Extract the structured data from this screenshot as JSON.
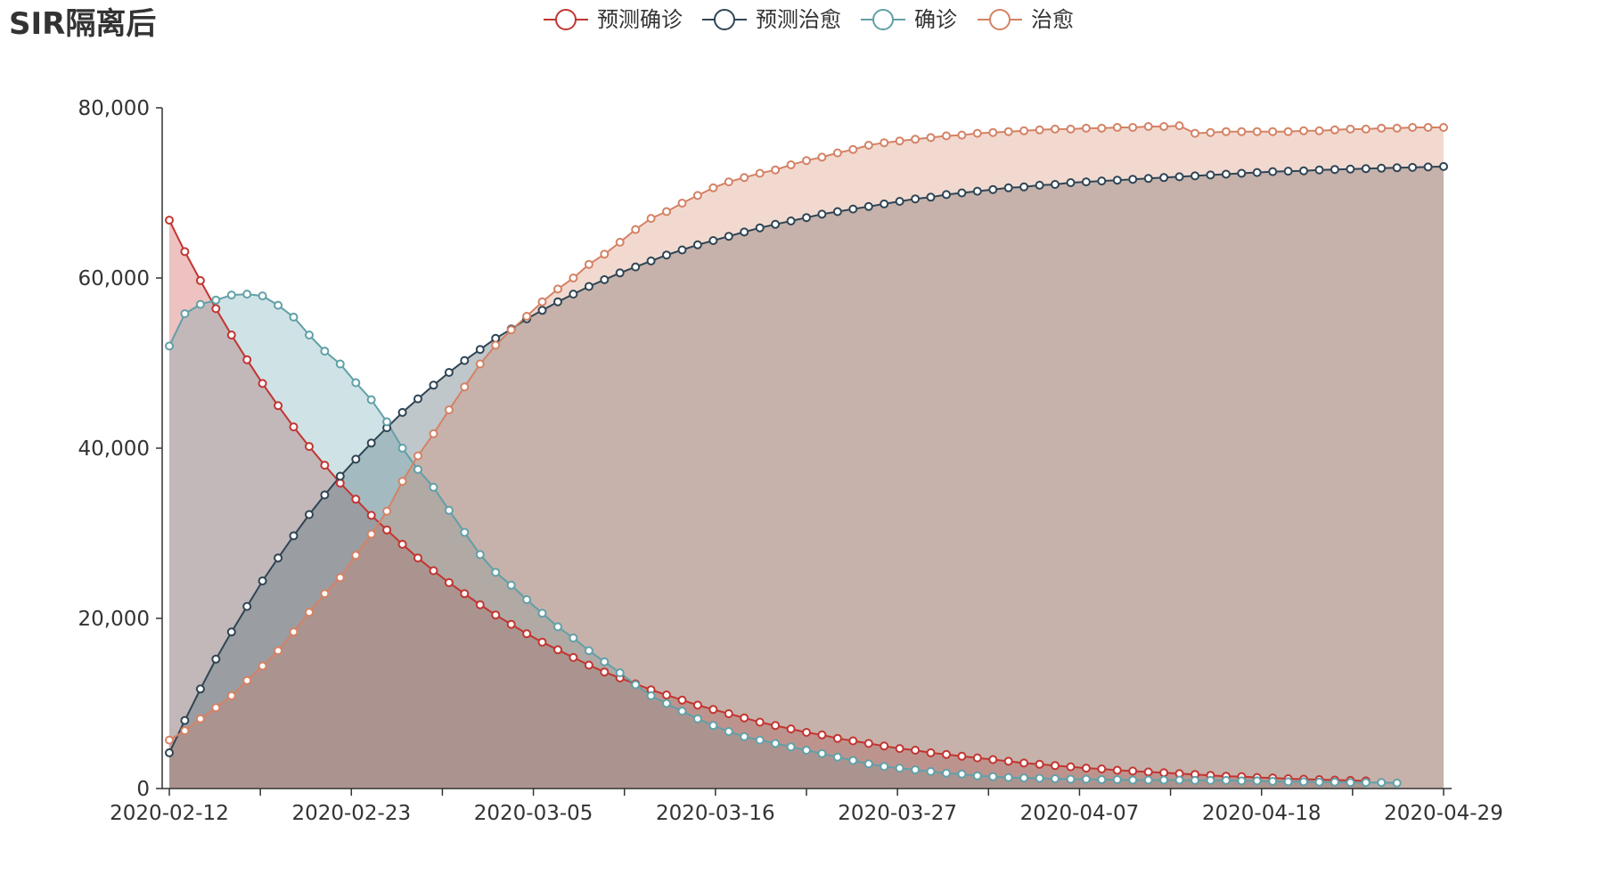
{
  "chart_data": {
    "type": "line",
    "title": "SIR隔离后",
    "xlabel": "",
    "ylabel": "",
    "ylim": [
      0,
      80000
    ],
    "yticks": [
      0,
      20000,
      40000,
      60000,
      80000
    ],
    "yticks_text": [
      "0",
      "20,000",
      "40,000",
      "60,000",
      "80,000"
    ],
    "x_start": "2020-02-12",
    "x_end": "2020-04-29",
    "x_tick_labels": [
      "2020-02-12",
      "2020-02-23",
      "2020-03-05",
      "2020-03-16",
      "2020-03-27",
      "2020-04-07",
      "2020-04-18",
      "2020-04-29"
    ],
    "legend_position": "top-center",
    "area_fill": true,
    "series": [
      {
        "name": "预测确诊",
        "color": "#c23531",
        "fill": "rgba(194,53,49,0.3)",
        "values": [
          66800,
          63100,
          59700,
          56400,
          53300,
          50400,
          47600,
          45000,
          42500,
          40200,
          38000,
          35900,
          34000,
          32100,
          30400,
          28700,
          27100,
          25600,
          24200,
          22900,
          21600,
          20400,
          19300,
          18200,
          17200,
          16300,
          15400,
          14500,
          13700,
          13000,
          12300,
          11600,
          11000,
          10400,
          9800,
          9300,
          8800,
          8300,
          7800,
          7400,
          7000,
          6600,
          6300,
          5900,
          5600,
          5300,
          5000,
          4700,
          4500,
          4200,
          4000,
          3800,
          3600,
          3400,
          3200,
          3000,
          2850,
          2700,
          2550,
          2400,
          2300,
          2150,
          2050,
          1950,
          1850,
          1750,
          1650,
          1550,
          1450,
          1400,
          1300,
          1250,
          1150,
          1100,
          1050,
          1000,
          950,
          900
        ]
      },
      {
        "name": "预测治愈",
        "color": "#2f4554",
        "fill": "rgba(47,69,84,0.3)",
        "values": [
          4200,
          8000,
          11700,
          15200,
          18400,
          21400,
          24400,
          27100,
          29700,
          32200,
          34500,
          36700,
          38700,
          40600,
          42400,
          44200,
          45800,
          47400,
          48900,
          50300,
          51600,
          52900,
          54000,
          55200,
          56200,
          57200,
          58100,
          59000,
          59800,
          60600,
          61300,
          62000,
          62700,
          63300,
          63900,
          64400,
          64900,
          65400,
          65900,
          66300,
          66700,
          67100,
          67500,
          67800,
          68100,
          68400,
          68700,
          69000,
          69300,
          69500,
          69800,
          70000,
          70200,
          70400,
          70600,
          70700,
          70900,
          71000,
          71200,
          71300,
          71400,
          71500,
          71600,
          71700,
          71800,
          71900,
          72000,
          72100,
          72200,
          72300,
          72400,
          72500,
          72550,
          72600,
          72700,
          72750,
          72800,
          72850,
          72900,
          72950,
          73000,
          73050,
          73100
        ]
      },
      {
        "name": "确诊",
        "color": "#61a0a8",
        "fill": "rgba(97,160,168,0.3)",
        "values": [
          52000,
          55800,
          56900,
          57400,
          58000,
          58100,
          57900,
          56800,
          55400,
          53300,
          51400,
          49900,
          47700,
          45700,
          43100,
          40000,
          37500,
          35400,
          32700,
          30100,
          27500,
          25400,
          23900,
          22200,
          20600,
          19000,
          17700,
          16200,
          14900,
          13600,
          12200,
          10900,
          10000,
          9100,
          8200,
          7400,
          6700,
          6100,
          5700,
          5300,
          4900,
          4500,
          4100,
          3700,
          3300,
          2900,
          2600,
          2400,
          2200,
          2000,
          1800,
          1700,
          1500,
          1400,
          1300,
          1250,
          1200,
          1150,
          1100,
          1100,
          1050,
          1050,
          1000,
          1000,
          1000,
          1000,
          950,
          950,
          950,
          900,
          900,
          850,
          800,
          800,
          750,
          750,
          700,
          700,
          700,
          650
        ]
      },
      {
        "name": "治愈",
        "color": "#d48265",
        "fill": "rgba(212,130,101,0.3)",
        "values": [
          5700,
          6800,
          8200,
          9500,
          10900,
          12700,
          14400,
          16200,
          18400,
          20700,
          22900,
          24800,
          27400,
          29900,
          32600,
          36100,
          39100,
          41700,
          44500,
          47200,
          49900,
          52100,
          53900,
          55500,
          57200,
          58700,
          60000,
          61600,
          62800,
          64200,
          65700,
          67000,
          67800,
          68800,
          69700,
          70600,
          71300,
          71800,
          72300,
          72700,
          73300,
          73800,
          74200,
          74700,
          75100,
          75600,
          75900,
          76100,
          76300,
          76500,
          76700,
          76800,
          77000,
          77100,
          77200,
          77300,
          77400,
          77500,
          77500,
          77600,
          77600,
          77700,
          77700,
          77800,
          77800,
          77900,
          77000,
          77100,
          77200,
          77200,
          77200,
          77200,
          77200,
          77300,
          77300,
          77400,
          77500,
          77500,
          77600,
          77600,
          77700,
          77700,
          77700
        ]
      }
    ]
  }
}
